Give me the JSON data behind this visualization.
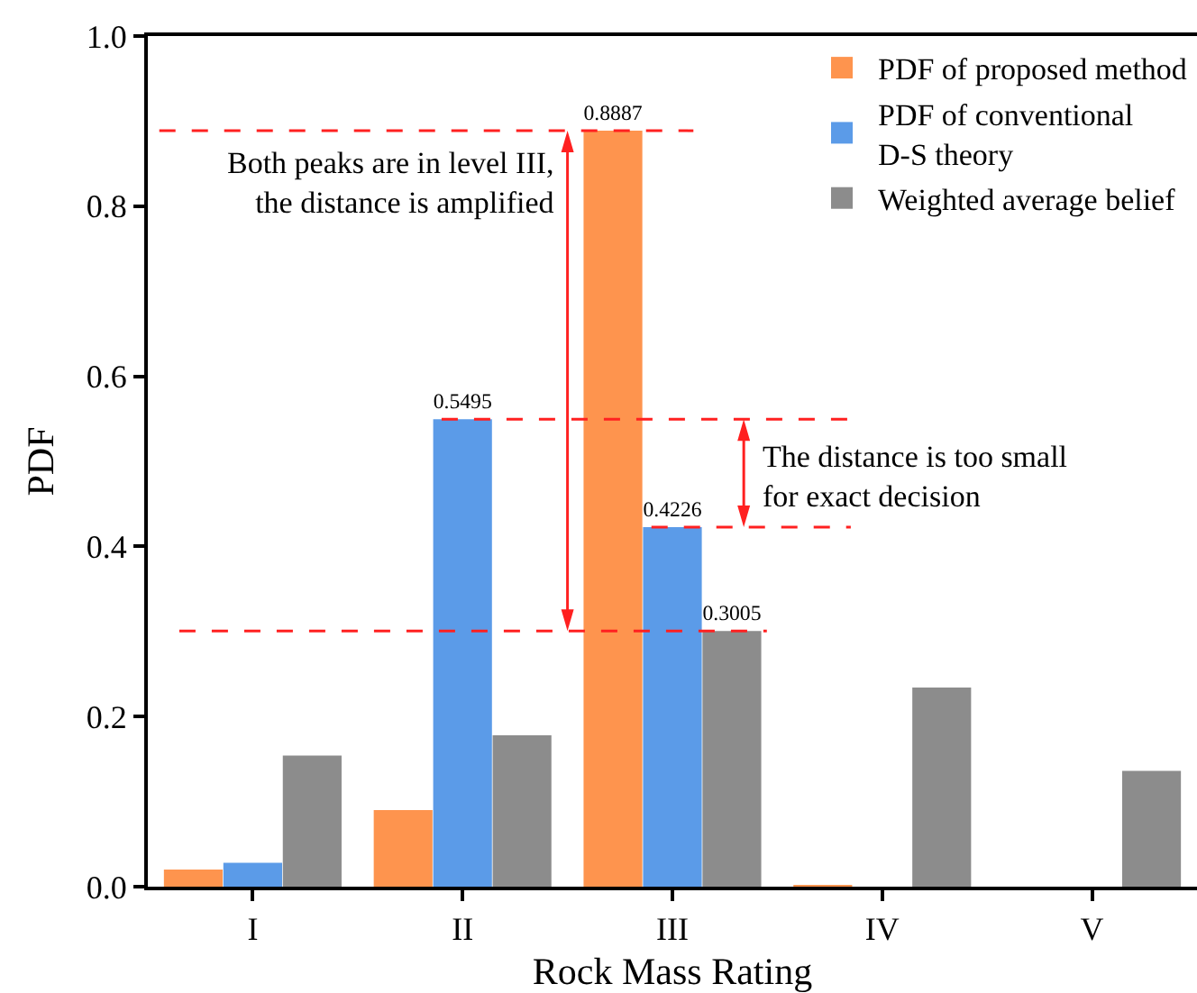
{
  "chart_data": {
    "type": "bar",
    "xlabel": "Rock Mass Rating",
    "ylabel": "PDF",
    "categories": [
      "I",
      "II",
      "III",
      "IV",
      "V"
    ],
    "series": [
      {
        "name": "PDF of proposed method",
        "color": "#fe944e",
        "values": [
          0.02,
          0.09,
          0.8887,
          0.002,
          0
        ],
        "value_labels": [
          null,
          null,
          "0.8887",
          null,
          null
        ]
      },
      {
        "name": "PDF of conventional\nD-S theory",
        "color": "#5b9be8",
        "values": [
          0.028,
          0.5495,
          0.4226,
          0,
          0
        ],
        "value_labels": [
          null,
          "0.5495",
          "0.4226",
          null,
          null
        ]
      },
      {
        "name": "Weighted average belief",
        "color": "#8c8c8c",
        "values": [
          0.154,
          0.178,
          0.3005,
          0.234,
          0.136
        ],
        "value_labels": [
          null,
          null,
          "0.3005",
          null,
          null
        ]
      }
    ],
    "ylim": [
      0,
      1
    ],
    "yticks": [
      {
        "value": 0,
        "label": "0.0"
      },
      {
        "value": 0.2,
        "label": "0.2"
      },
      {
        "value": 0.4,
        "label": "0.4"
      },
      {
        "value": 0.6,
        "label": "0.6"
      },
      {
        "value": 0.8,
        "label": "0.8"
      },
      {
        "value": 1,
        "label": "1.0"
      }
    ],
    "ref_lines": [
      {
        "axis": "y",
        "value": 0.8887,
        "color": "#ff2020",
        "line_style": "dashed"
      },
      {
        "axis": "y",
        "value": 0.5495,
        "color": "#ff2020",
        "line_style": "dashed"
      },
      {
        "axis": "y",
        "value": 0.4226,
        "color": "#ff2020",
        "line_style": "dashed"
      },
      {
        "axis": "y",
        "value": 0.3005,
        "color": "#ff2020",
        "line_style": "dashed"
      }
    ],
    "annotations": [
      {
        "text": "Both peaks are in level III,\nthe distance is amplified",
        "y": 0.8887
      },
      "The distance is too small\nfor exact decision"
    ],
    "grid": false,
    "legend": "top right"
  }
}
